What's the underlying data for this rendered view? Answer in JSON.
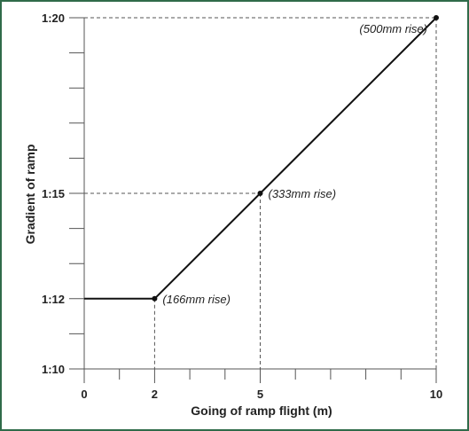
{
  "chart_data": {
    "type": "line",
    "xlabel": "Going of ramp flight (m)",
    "ylabel": "Gradient of ramp",
    "x_ticks": [
      {
        "value": 0,
        "label": "0"
      },
      {
        "value": 2,
        "label": "2"
      },
      {
        "value": 5,
        "label": "5"
      },
      {
        "value": 10,
        "label": "10"
      }
    ],
    "x_minor_ticks": [
      1,
      3,
      4,
      6,
      7,
      8,
      9
    ],
    "xlim": [
      0,
      10
    ],
    "y_scale": "ramp gradient (1:n)",
    "y_ticks": [
      {
        "value": 10,
        "label": "1:10"
      },
      {
        "value": 12,
        "label": "1:12"
      },
      {
        "value": 15,
        "label": "1:15"
      },
      {
        "value": 20,
        "label": "1:20"
      }
    ],
    "y_minor_ticks": [
      11,
      13,
      14,
      16,
      17,
      18,
      19
    ],
    "ylim": [
      10,
      20
    ],
    "series": [
      {
        "points": [
          {
            "x": 0,
            "y": 12
          },
          {
            "x": 2,
            "y": 12
          },
          {
            "x": 5,
            "y": 15
          },
          {
            "x": 10,
            "y": 20
          }
        ],
        "color": "#111111"
      }
    ],
    "annotations": [
      {
        "x": 2,
        "y": 12,
        "text": "(166mm rise)"
      },
      {
        "x": 5,
        "y": 15,
        "text": "(333mm rise)"
      },
      {
        "x": 10,
        "y": 20,
        "text": "(500mm rise)"
      }
    ],
    "grid": false,
    "reference_lines": "dashed guides from annotated points to both axes"
  },
  "colors": {
    "frame_border": "#2f6b4a",
    "background": "#ffffff",
    "line": "#111111",
    "axis": "#555555",
    "guide": "#555555"
  }
}
